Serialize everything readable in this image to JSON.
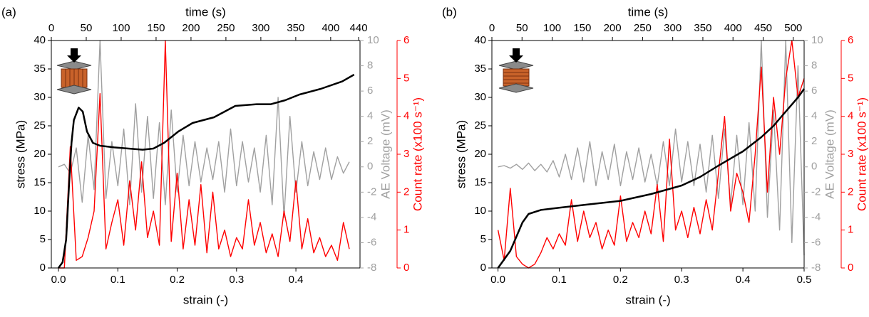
{
  "chart_data": [
    {
      "type": "line",
      "panel": "(a)",
      "xlabel": "strain (-)",
      "x2label": "time (s)",
      "ylabel": "stress (MPa)",
      "y2label": "AE Voltage (mV)",
      "y3label": "Count rate (x100 s⁻¹)",
      "xlim": [
        -0.012,
        0.508
      ],
      "xticks": [
        {
          "value": 0,
          "label": "0.0"
        },
        0.1,
        0.2,
        0.3,
        0.4
      ],
      "x2lim": [
        0,
        442
      ],
      "x2ticks": [
        0,
        50,
        100,
        150,
        200,
        250,
        300,
        350,
        400,
        440
      ],
      "ylim": [
        0,
        40
      ],
      "yticks": [
        0,
        5,
        10,
        15,
        20,
        25,
        30,
        35,
        40
      ],
      "y2lim": [
        -8,
        10
      ],
      "y2ticks": [
        -8,
        -6,
        -4,
        -2,
        0,
        2,
        4,
        6,
        8,
        10
      ],
      "y3lim": [
        0,
        6
      ],
      "y3ticks": [
        0,
        1,
        2,
        3,
        4,
        5,
        6
      ],
      "series": [
        {
          "color": "#a0a0a0",
          "axis": "y2",
          "x": [
            0,
            0.01,
            0.02,
            0.03,
            0.04,
            0.05,
            0.06,
            0.07,
            0.08,
            0.09,
            0.1,
            0.11,
            0.12,
            0.13,
            0.14,
            0.15,
            0.16,
            0.17,
            0.18,
            0.19,
            0.2,
            0.21,
            0.22,
            0.23,
            0.24,
            0.25,
            0.26,
            0.27,
            0.28,
            0.29,
            0.3,
            0.31,
            0.32,
            0.33,
            0.34,
            0.35,
            0.36,
            0.37,
            0.38,
            0.39,
            0.4,
            0.41,
            0.42,
            0.43,
            0.44,
            0.45,
            0.46,
            0.47,
            0.48,
            0.49
          ],
          "values": [
            0,
            0.2,
            -0.5,
            1.5,
            -2.8,
            2.5,
            -1.8,
            10,
            -2.5,
            2,
            -1.5,
            3,
            -3,
            5,
            -2,
            4,
            -2.5,
            3.5,
            -3,
            4.5,
            -2,
            2.5,
            -1.5,
            2,
            -1.2,
            1.5,
            -1,
            2,
            -2,
            3,
            -1.5,
            2,
            -1.2,
            1.5,
            -2,
            2.5,
            -3,
            5.5,
            -4,
            4,
            -2,
            2,
            -1.5,
            1.2,
            -1,
            1.5,
            -1,
            0.8,
            -0.5,
            0.4
          ]
        },
        {
          "color": "#ff0000",
          "axis": "y3",
          "x": [
            0,
            0.01,
            0.02,
            0.03,
            0.04,
            0.05,
            0.06,
            0.07,
            0.08,
            0.09,
            0.1,
            0.11,
            0.12,
            0.13,
            0.14,
            0.15,
            0.16,
            0.17,
            0.18,
            0.19,
            0.2,
            0.21,
            0.22,
            0.23,
            0.24,
            0.25,
            0.26,
            0.27,
            0.28,
            0.29,
            0.3,
            0.31,
            0.32,
            0.33,
            0.34,
            0.35,
            0.36,
            0.37,
            0.38,
            0.39,
            0.4,
            0.41,
            0.42,
            0.43,
            0.44,
            0.45,
            0.46,
            0.47,
            0.48,
            0.49
          ],
          "values": [
            0,
            0,
            3.2,
            0.2,
            0.3,
            0.8,
            1.5,
            4.6,
            0.5,
            1.2,
            1.8,
            0.6,
            2.3,
            1,
            2.8,
            0.8,
            1.5,
            0.6,
            6,
            0.7,
            2.5,
            0.5,
            1.8,
            0.6,
            2.2,
            0.4,
            2,
            0.5,
            1,
            0.3,
            0.8,
            0.5,
            1.8,
            0.6,
            1.2,
            0.4,
            0.9,
            0.3,
            1.5,
            0.7,
            2.3,
            0.5,
            1.3,
            0.4,
            0.8,
            0.3,
            0.6,
            0.2,
            1.2,
            0.5
          ]
        },
        {
          "color": "#000000",
          "axis": "y",
          "x": [
            0,
            0.007,
            0.013,
            0.018,
            0.022,
            0.026,
            0.034,
            0.041,
            0.048,
            0.058,
            0.07,
            0.094,
            0.118,
            0.142,
            0.16,
            0.178,
            0.202,
            0.226,
            0.262,
            0.298,
            0.334,
            0.358,
            0.382,
            0.406,
            0.442,
            0.478,
            0.498
          ],
          "values": [
            0,
            1,
            5,
            15,
            22,
            26,
            28.2,
            27.5,
            24,
            22,
            21.5,
            21.2,
            21,
            20.8,
            21,
            22,
            24,
            25.5,
            26.5,
            28.5,
            28.8,
            28.8,
            29.5,
            30.5,
            31.5,
            32.8,
            34
          ]
        }
      ]
    },
    {
      "type": "line",
      "panel": "(b)",
      "xlabel": "strain (-)",
      "x2label": "time (s)",
      "ylabel": "stress (MPa)",
      "y2label": "AE Voltage (mV)",
      "y3label": "Count rate (x100 s⁻¹)",
      "xlim": [
        -0.01,
        0.5
      ],
      "xticks": [
        {
          "value": 0,
          "label": "0.0"
        },
        0.1,
        0.2,
        0.3,
        0.4,
        0.5
      ],
      "x2lim": [
        0,
        518
      ],
      "x2ticks": [
        0,
        50,
        100,
        150,
        200,
        250,
        300,
        350,
        400,
        450,
        500
      ],
      "ylim": [
        0,
        40
      ],
      "yticks": [
        0,
        5,
        10,
        15,
        20,
        25,
        30,
        35,
        40
      ],
      "y2lim": [
        -8,
        10
      ],
      "y2ticks": [
        -8,
        -6,
        -4,
        -2,
        0,
        2,
        4,
        6,
        8,
        10
      ],
      "y3lim": [
        0,
        6
      ],
      "y3ticks": [
        0,
        1,
        2,
        3,
        4,
        5,
        6
      ],
      "series": [
        {
          "color": "#a0a0a0",
          "axis": "y2",
          "x": [
            0,
            0.01,
            0.02,
            0.03,
            0.04,
            0.05,
            0.06,
            0.07,
            0.08,
            0.09,
            0.1,
            0.11,
            0.12,
            0.13,
            0.14,
            0.15,
            0.16,
            0.17,
            0.18,
            0.19,
            0.2,
            0.21,
            0.22,
            0.23,
            0.24,
            0.25,
            0.26,
            0.27,
            0.28,
            0.29,
            0.3,
            0.31,
            0.32,
            0.33,
            0.34,
            0.35,
            0.36,
            0.37,
            0.38,
            0.39,
            0.4,
            0.41,
            0.42,
            0.43,
            0.44,
            0.45,
            0.46,
            0.47,
            0.48,
            0.49,
            0.5
          ],
          "values": [
            0,
            0.1,
            -0.1,
            0.2,
            -0.2,
            0.3,
            -0.3,
            0.2,
            -0.4,
            0.5,
            -0.8,
            1,
            -1,
            1.5,
            -1.2,
            2,
            -1.5,
            1.2,
            -1,
            1.8,
            -1.5,
            1.2,
            -1,
            1.5,
            -1.2,
            1,
            -1.5,
            2,
            -1.5,
            3,
            -1.2,
            2,
            -1.5,
            1.8,
            -2,
            2.5,
            -2.5,
            3,
            -3,
            2.5,
            -3,
            3.5,
            -3.5,
            10,
            -4,
            4.5,
            -5,
            10,
            -6,
            8,
            -7
          ]
        },
        {
          "color": "#ff0000",
          "axis": "y3",
          "x": [
            0,
            0.01,
            0.02,
            0.03,
            0.04,
            0.05,
            0.06,
            0.07,
            0.08,
            0.09,
            0.1,
            0.11,
            0.12,
            0.13,
            0.14,
            0.15,
            0.16,
            0.17,
            0.18,
            0.19,
            0.2,
            0.21,
            0.22,
            0.23,
            0.24,
            0.25,
            0.26,
            0.27,
            0.28,
            0.29,
            0.3,
            0.31,
            0.32,
            0.33,
            0.34,
            0.35,
            0.36,
            0.37,
            0.38,
            0.39,
            0.4,
            0.41,
            0.42,
            0.43,
            0.44,
            0.45,
            0.46,
            0.47,
            0.48,
            0.49,
            0.5
          ],
          "values": [
            1,
            0.2,
            2.1,
            0.3,
            0.1,
            0,
            0.1,
            0.4,
            0.8,
            0.5,
            0.9,
            0.6,
            1.8,
            0.7,
            1.5,
            0.8,
            1.2,
            0.5,
            1,
            0.6,
            1.9,
            0.7,
            1.2,
            0.8,
            1.5,
            0.9,
            2.2,
            0.7,
            3.4,
            1,
            1.5,
            0.8,
            1.6,
            0.9,
            1.8,
            1,
            2.5,
            4,
            1.5,
            2.5,
            2,
            1.2,
            3,
            5.3,
            2,
            4.5,
            3,
            5,
            6,
            4.5,
            5
          ]
        },
        {
          "color": "#000000",
          "axis": "y",
          "x": [
            0,
            0.01,
            0.02,
            0.03,
            0.04,
            0.05,
            0.07,
            0.1,
            0.15,
            0.2,
            0.25,
            0.3,
            0.33,
            0.36,
            0.4,
            0.43,
            0.45,
            0.47,
            0.49,
            0.5
          ],
          "values": [
            0,
            1.5,
            3,
            5.5,
            8,
            9.5,
            10.2,
            10.6,
            11.2,
            11.8,
            13,
            14.5,
            16,
            18,
            20.5,
            23,
            25,
            27.5,
            30,
            31.5
          ]
        }
      ]
    }
  ]
}
